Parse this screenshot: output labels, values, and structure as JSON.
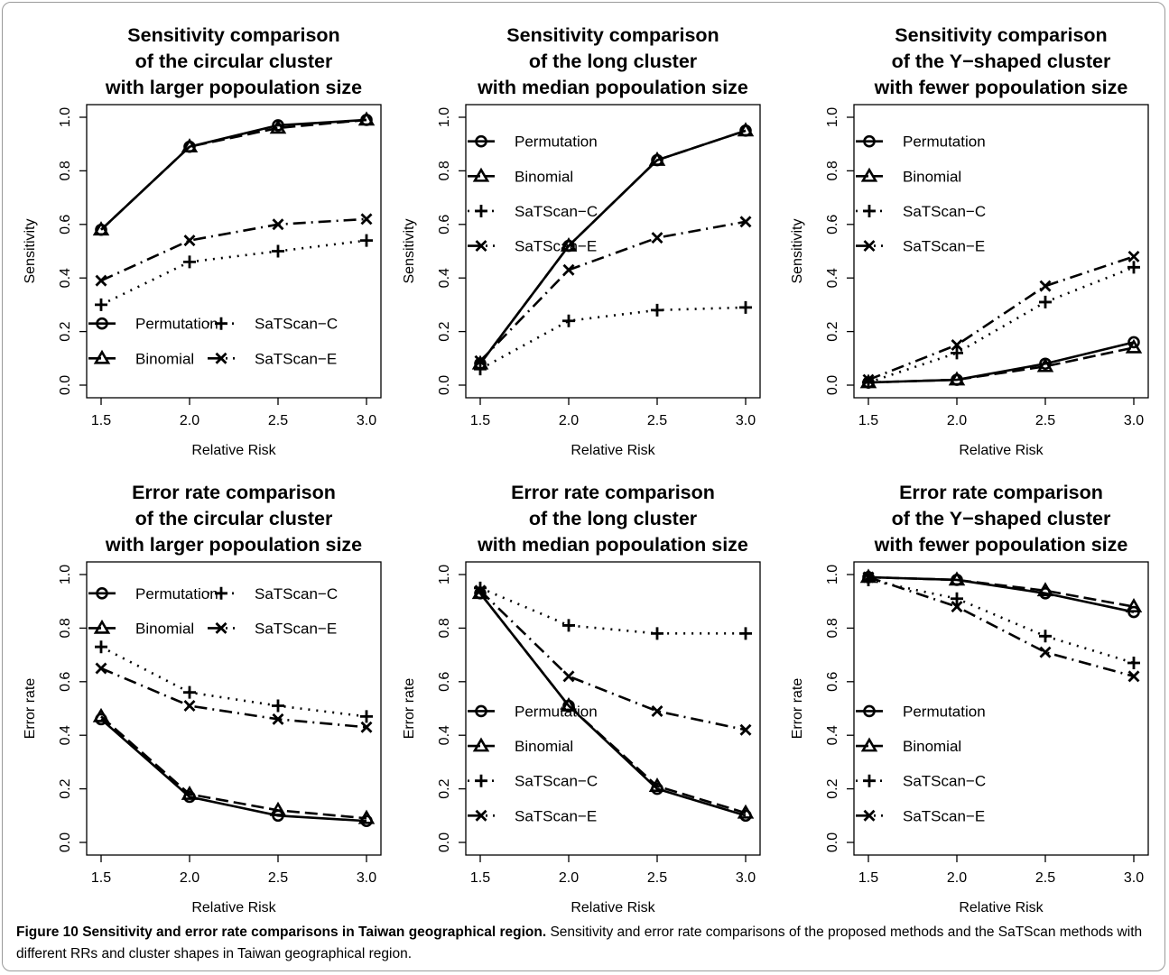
{
  "figure": {
    "caption_title": "Figure 10 Sensitivity and error rate comparisons in Taiwan geographical region.",
    "caption_text": "Sensitivity and error rate comparisons of the proposed methods and the SaTScan methods with different RRs and cluster shapes in Taiwan geographical region."
  },
  "chart_data": [
    {
      "type": "line",
      "title": [
        "Sensitivity comparison",
        "of the circular cluster",
        "with larger popoulation size"
      ],
      "xlabel": "Relative Risk",
      "ylabel": "Sensitivity",
      "x": [
        1.5,
        2.0,
        2.5,
        3.0
      ],
      "xticks": [
        "1.5",
        "2.0",
        "2.5",
        "3.0"
      ],
      "ylim": [
        0,
        1
      ],
      "yticks": [
        "0.0",
        "0.2",
        "0.4",
        "0.6",
        "0.8",
        "1.0"
      ],
      "legend": "bottom-2col",
      "series": [
        {
          "name": "Permutation",
          "values": [
            0.58,
            0.89,
            0.97,
            0.99
          ]
        },
        {
          "name": "Binomial",
          "values": [
            0.58,
            0.89,
            0.96,
            0.99
          ]
        },
        {
          "name": "SaTScan−C",
          "values": [
            0.3,
            0.46,
            0.5,
            0.54
          ]
        },
        {
          "name": "SaTScan−E",
          "values": [
            0.39,
            0.54,
            0.6,
            0.62
          ]
        }
      ]
    },
    {
      "type": "line",
      "title": [
        "Sensitivity comparison",
        "of the long cluster",
        "with median popoulation size"
      ],
      "xlabel": "Relative Risk",
      "ylabel": "Sensitivity",
      "x": [
        1.5,
        2.0,
        2.5,
        3.0
      ],
      "xticks": [
        "1.5",
        "2.0",
        "2.5",
        "3.0"
      ],
      "ylim": [
        0,
        1
      ],
      "yticks": [
        "0.0",
        "0.2",
        "0.4",
        "0.6",
        "0.8",
        "1.0"
      ],
      "legend": "top-left",
      "series": [
        {
          "name": "Permutation",
          "values": [
            0.08,
            0.52,
            0.84,
            0.95
          ]
        },
        {
          "name": "Binomial",
          "values": [
            0.08,
            0.52,
            0.84,
            0.95
          ]
        },
        {
          "name": "SaTScan−C",
          "values": [
            0.06,
            0.24,
            0.28,
            0.29
          ]
        },
        {
          "name": "SaTScan−E",
          "values": [
            0.09,
            0.43,
            0.55,
            0.61
          ]
        }
      ]
    },
    {
      "type": "line",
      "title": [
        "Sensitivity comparison",
        "of the Y−shaped cluster",
        "with fewer popoulation size"
      ],
      "xlabel": "Relative Risk",
      "ylabel": "Sensitivity",
      "x": [
        1.5,
        2.0,
        2.5,
        3.0
      ],
      "xticks": [
        "1.5",
        "2.0",
        "2.5",
        "3.0"
      ],
      "ylim": [
        0,
        1
      ],
      "yticks": [
        "0.0",
        "0.2",
        "0.4",
        "0.6",
        "0.8",
        "1.0"
      ],
      "legend": "top-left",
      "series": [
        {
          "name": "Permutation",
          "values": [
            0.01,
            0.02,
            0.08,
            0.16
          ]
        },
        {
          "name": "Binomial",
          "values": [
            0.01,
            0.02,
            0.07,
            0.14
          ]
        },
        {
          "name": "SaTScan−C",
          "values": [
            0.01,
            0.12,
            0.31,
            0.44
          ]
        },
        {
          "name": "SaTScan−E",
          "values": [
            0.02,
            0.15,
            0.37,
            0.48
          ]
        }
      ]
    },
    {
      "type": "line",
      "title": [
        "Error rate comparison",
        "of the circular cluster",
        "with larger popoulation size"
      ],
      "xlabel": "Relative Risk",
      "ylabel": "Error rate",
      "x": [
        1.5,
        2.0,
        2.5,
        3.0
      ],
      "xticks": [
        "1.5",
        "2.0",
        "2.5",
        "3.0"
      ],
      "ylim": [
        0,
        1
      ],
      "yticks": [
        "0.0",
        "0.2",
        "0.4",
        "0.6",
        "0.8",
        "1.0"
      ],
      "legend": "top-2col",
      "series": [
        {
          "name": "Permutation",
          "values": [
            0.46,
            0.17,
            0.1,
            0.08
          ]
        },
        {
          "name": "Binomial",
          "values": [
            0.47,
            0.18,
            0.12,
            0.09
          ]
        },
        {
          "name": "SaTScan−C",
          "values": [
            0.73,
            0.56,
            0.51,
            0.47
          ]
        },
        {
          "name": "SaTScan−E",
          "values": [
            0.65,
            0.51,
            0.46,
            0.43
          ]
        }
      ]
    },
    {
      "type": "line",
      "title": [
        "Error rate comparison",
        "of the long cluster",
        "with median popoulation size"
      ],
      "xlabel": "Relative Risk",
      "ylabel": "Error rate",
      "x": [
        1.5,
        2.0,
        2.5,
        3.0
      ],
      "xticks": [
        "1.5",
        "2.0",
        "2.5",
        "3.0"
      ],
      "ylim": [
        0,
        1
      ],
      "yticks": [
        "0.0",
        "0.2",
        "0.4",
        "0.6",
        "0.8",
        "1.0"
      ],
      "legend": "middle-left",
      "series": [
        {
          "name": "Permutation",
          "values": [
            0.93,
            0.51,
            0.2,
            0.1
          ]
        },
        {
          "name": "Binomial",
          "values": [
            0.93,
            0.51,
            0.21,
            0.11
          ]
        },
        {
          "name": "SaTScan−C",
          "values": [
            0.95,
            0.81,
            0.78,
            0.78
          ]
        },
        {
          "name": "SaTScan−E",
          "values": [
            0.94,
            0.62,
            0.49,
            0.42
          ]
        }
      ]
    },
    {
      "type": "line",
      "title": [
        "Error rate comparison",
        "of the Y−shaped cluster",
        "with fewer popoulation size"
      ],
      "xlabel": "Relative Risk",
      "ylabel": "Error rate",
      "x": [
        1.5,
        2.0,
        2.5,
        3.0
      ],
      "xticks": [
        "1.5",
        "2.0",
        "2.5",
        "3.0"
      ],
      "ylim": [
        0,
        1
      ],
      "yticks": [
        "0.0",
        "0.2",
        "0.4",
        "0.6",
        "0.8",
        "1.0"
      ],
      "legend": "middle-left",
      "series": [
        {
          "name": "Permutation",
          "values": [
            0.99,
            0.98,
            0.93,
            0.86
          ]
        },
        {
          "name": "Binomial",
          "values": [
            0.99,
            0.98,
            0.94,
            0.88
          ]
        },
        {
          "name": "SaTScan−C",
          "values": [
            0.98,
            0.91,
            0.77,
            0.67
          ]
        },
        {
          "name": "SaTScan−E",
          "values": [
            0.99,
            0.88,
            0.71,
            0.62
          ]
        }
      ]
    }
  ]
}
